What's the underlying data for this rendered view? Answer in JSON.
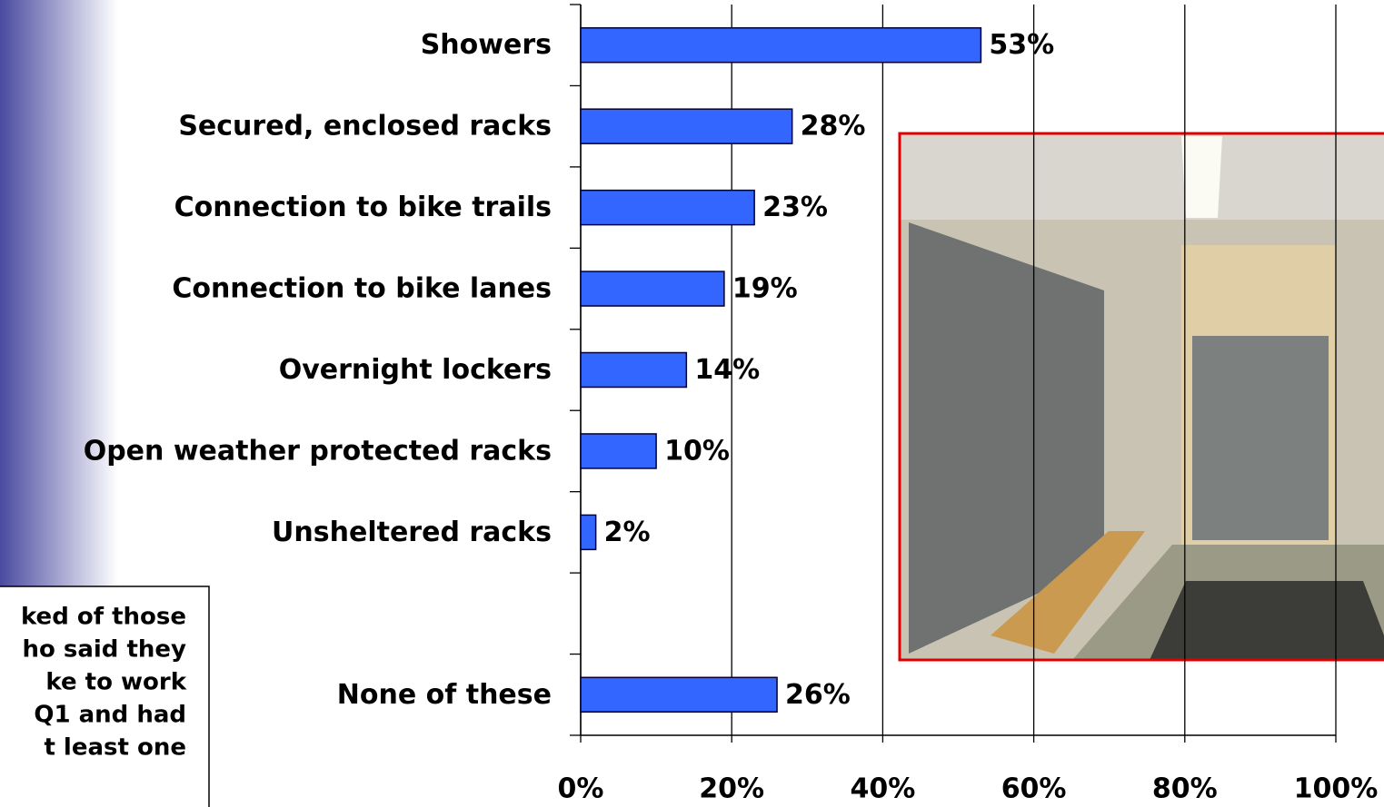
{
  "chart_data": {
    "type": "hbar",
    "categories": [
      "Showers",
      "Secured, enclosed racks",
      "Connection to bike trails",
      "Connection to bike lanes",
      "Overnight lockers",
      "Open weather protected racks",
      "Unsheltered racks",
      null,
      "None of these"
    ],
    "values": [
      53,
      28,
      23,
      19,
      14,
      10,
      2,
      null,
      26
    ],
    "value_labels": [
      "53%",
      "28%",
      "23%",
      "19%",
      "14%",
      "10%",
      "2%",
      null,
      "26%"
    ],
    "color": "#3366ff",
    "xlim": [
      0,
      100
    ],
    "xticks": [
      {
        "value": 0,
        "label": "0%"
      },
      {
        "value": 20,
        "label": "20%"
      },
      {
        "value": 40,
        "label": "40%"
      },
      {
        "value": 60,
        "label": "60%"
      },
      {
        "value": 80,
        "label": "80%"
      },
      {
        "value": 100,
        "label": "100%"
      }
    ],
    "grid": true
  },
  "note": {
    "lines": [
      "ked of those",
      "ho said they",
      "ke to work",
      "Q1 and had",
      "t least one"
    ]
  }
}
